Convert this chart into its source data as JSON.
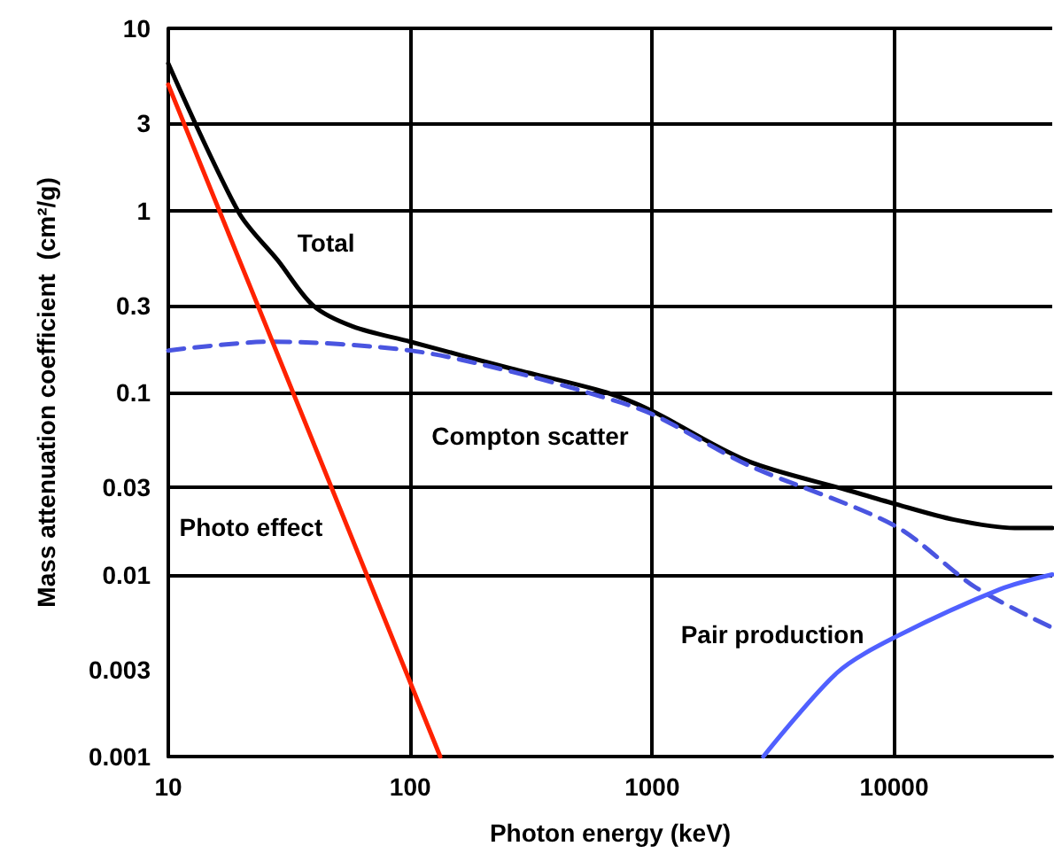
{
  "chart_data": {
    "type": "line",
    "xlabel": "Photon energy (keV)",
    "ylabel": "Mass attenuation coefficient  (cm²/g)",
    "log": "xy",
    "grid": true,
    "legend": false,
    "marker": "none",
    "line_style": "solid",
    "xlim": [
      10,
      45000
    ],
    "xticks": [
      10,
      100,
      1000,
      10000
    ],
    "ylim": [
      0.001,
      10
    ],
    "yticks": [
      0.001,
      0.003,
      0.01,
      0.03,
      0.1,
      0.3,
      1,
      3,
      10
    ],
    "series": [
      {
        "name": "Total",
        "color": "#000000",
        "x": [
          10,
          19.6,
          28.4,
          39.7,
          58,
          100,
          263,
          646,
          1000,
          2480,
          6460,
          10000,
          17700,
          31500,
          45000
        ],
        "values": [
          6.4,
          0.97,
          0.53,
          0.3,
          0.23,
          0.19,
          0.135,
          0.1,
          0.079,
          0.042,
          0.029,
          0.0245,
          0.02,
          0.018,
          0.018
        ]
      },
      {
        "name": "Compton scatter",
        "color": "#4a55e0",
        "line_style": "dashed",
        "x": [
          10,
          26.5,
          100,
          263,
          614,
          1000,
          2480,
          10000,
          21700,
          45000
        ],
        "values": [
          0.17,
          0.19,
          0.17,
          0.13,
          0.095,
          0.076,
          0.04,
          0.0186,
          0.0085,
          0.0051
        ]
      },
      {
        "name": "Photo effect",
        "color": "#ff2200",
        "x": [
          10,
          40,
          133
        ],
        "values": [
          4.9,
          0.052,
          0.001
        ]
      },
      {
        "name": "Pair production",
        "color": "#5060ff",
        "x": [
          2880,
          5830,
          10000,
          27400,
          45000
        ],
        "values": [
          0.001,
          0.0029,
          0.0045,
          0.0083,
          0.01
        ]
      }
    ]
  }
}
